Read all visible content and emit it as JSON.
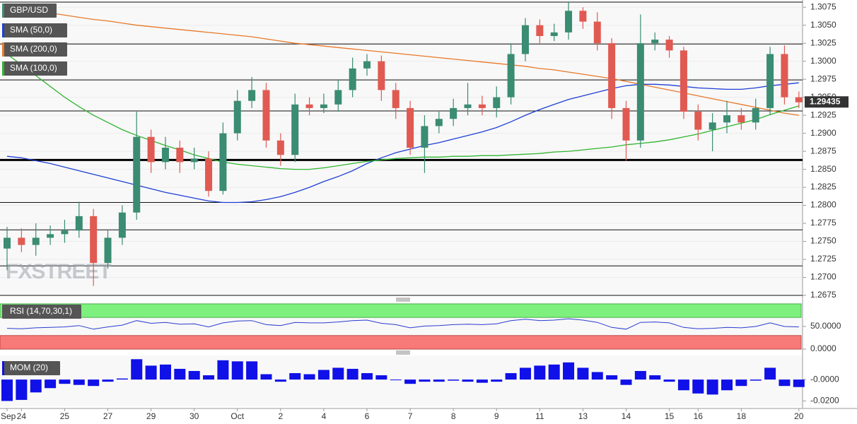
{
  "chart_data": {
    "type": "candlestick",
    "title": "GBP/USD",
    "categories": [
      "Sep",
      "24",
      null,
      null,
      "25",
      null,
      null,
      "27",
      null,
      null,
      "29",
      null,
      null,
      "30",
      null,
      null,
      "Oct",
      null,
      null,
      "2",
      null,
      null,
      "4",
      null,
      null,
      "6",
      null,
      null,
      "7",
      null,
      null,
      "8",
      null,
      null,
      "9",
      null,
      null,
      "11",
      null,
      null,
      "13",
      null,
      null,
      "14",
      null,
      null,
      "15",
      null,
      "16",
      null,
      null,
      "18",
      null,
      null,
      null,
      "20"
    ],
    "open": [
      1.274,
      1.2755,
      1.2745,
      1.2755,
      1.276,
      1.2765,
      1.2785,
      1.272,
      1.2755,
      1.279,
      1.2895,
      1.286,
      1.288,
      1.286,
      1.2865,
      1.282,
      1.29,
      1.2945,
      1.296,
      1.289,
      1.287,
      1.294,
      1.2935,
      1.294,
      1.296,
      1.299,
      1.3,
      1.296,
      1.2935,
      1.288,
      1.291,
      1.292,
      1.2935,
      1.294,
      1.2935,
      1.295,
      1.301,
      1.305,
      1.3035,
      1.304,
      1.307,
      1.3055,
      1.3025,
      1.2935,
      1.289,
      1.3025,
      1.303,
      1.3015,
      1.293,
      1.2905,
      1.2915,
      1.2925,
      1.2915,
      1.2935,
      1.301,
      1.295
    ],
    "high": [
      1.277,
      1.2768,
      1.2775,
      1.2772,
      1.278,
      1.2805,
      1.2795,
      1.2765,
      1.28,
      1.293,
      1.2905,
      1.2895,
      1.289,
      1.288,
      1.2875,
      1.2915,
      1.296,
      1.2978,
      1.297,
      1.29,
      1.2955,
      1.295,
      1.2955,
      1.2975,
      1.3005,
      1.301,
      1.3008,
      1.297,
      1.2945,
      1.2925,
      1.293,
      1.2948,
      1.297,
      1.2952,
      1.2965,
      1.3025,
      1.306,
      1.3058,
      1.3052,
      1.3082,
      1.3075,
      1.3068,
      1.3032,
      1.2945,
      1.3065,
      1.304,
      1.3035,
      1.302,
      1.294,
      1.2928,
      1.2945,
      1.2935,
      1.2948,
      1.302,
      1.3022,
      1.2958
    ],
    "low": [
      1.271,
      1.2735,
      1.273,
      1.2745,
      1.2748,
      1.2755,
      1.2688,
      1.2712,
      1.2745,
      1.278,
      1.2845,
      1.285,
      1.2845,
      1.285,
      1.2812,
      1.2815,
      1.289,
      1.2935,
      1.288,
      1.2855,
      1.286,
      1.2925,
      1.2928,
      1.293,
      1.295,
      1.298,
      1.2945,
      1.292,
      1.287,
      1.2845,
      1.29,
      1.291,
      1.2925,
      1.2925,
      1.2922,
      1.294,
      1.3,
      1.3025,
      1.3028,
      1.303,
      1.3045,
      1.3015,
      1.292,
      1.2862,
      1.288,
      1.3015,
      1.3005,
      1.292,
      1.289,
      1.2875,
      1.29,
      1.2905,
      1.2905,
      1.2925,
      1.294,
      1.2935
    ],
    "close": [
      1.2755,
      1.2745,
      1.2755,
      1.276,
      1.2765,
      1.2785,
      1.272,
      1.2755,
      1.279,
      1.2895,
      1.286,
      1.288,
      1.286,
      1.2865,
      1.282,
      1.29,
      1.2945,
      1.296,
      1.289,
      1.287,
      1.294,
      1.2935,
      1.294,
      1.296,
      1.299,
      1.3,
      1.296,
      1.2935,
      1.288,
      1.291,
      1.292,
      1.2935,
      1.294,
      1.2935,
      1.295,
      1.301,
      1.305,
      1.3035,
      1.304,
      1.307,
      1.3055,
      1.3025,
      1.2935,
      1.289,
      1.3025,
      1.303,
      1.3015,
      1.293,
      1.2905,
      1.2915,
      1.2925,
      1.2915,
      1.2935,
      1.301,
      1.295,
      1.2943
    ],
    "up_color": "#3a8c72",
    "down_color": "#e05a52",
    "ylim": [
      1.2675,
      1.3085
    ],
    "yticks": [
      1.3075,
      {
        "value": 1.305,
        "label": "1.3050"
      },
      1.3025,
      {
        "value": 1.3,
        "label": "1.3000"
      },
      1.2975,
      {
        "value": 1.295,
        "label": "1.2950"
      },
      1.2925,
      {
        "value": 1.29,
        "label": "1.2900"
      },
      1.2875,
      {
        "value": 1.285,
        "label": "1.2850"
      },
      1.2825,
      {
        "value": 1.28,
        "label": "1.2800"
      },
      1.2775,
      {
        "value": 1.275,
        "label": "1.2750"
      },
      1.2725,
      {
        "value": 1.27,
        "label": "1.2700"
      },
      1.2675
    ],
    "levels": [
      1.3082,
      1.3024,
      1.2974,
      1.2931,
      1.2804,
      1.2766,
      1.2716,
      1.2675
    ],
    "strong_level": 1.2863,
    "last_price": 1.29435,
    "watermark": "FXSTREET",
    "overlays": [
      {
        "name": "SMA (50,0)",
        "color": "#1f3fd6",
        "values": [
          1.2868,
          1.2866,
          1.2862,
          1.2858,
          1.2853,
          1.2848,
          1.2843,
          1.2838,
          1.2833,
          1.2828,
          1.2823,
          1.2818,
          1.2814,
          1.281,
          1.2806,
          1.2804,
          1.2804,
          1.2805,
          1.2808,
          1.2812,
          1.2818,
          1.2825,
          1.2833,
          1.284,
          1.2848,
          1.2858,
          1.2866,
          1.2873,
          1.2878,
          1.2883,
          1.2887,
          1.2892,
          1.2897,
          1.2902,
          1.2908,
          1.2916,
          1.2925,
          1.2933,
          1.294,
          1.2947,
          1.2952,
          1.2957,
          1.2962,
          1.2966,
          1.2968,
          1.2968,
          1.2967,
          1.2965,
          1.2963,
          1.2962,
          1.2961,
          1.2961,
          1.2963,
          1.2966,
          1.2968,
          1.297
        ]
      },
      {
        "name": "SMA (200,0)",
        "color": "#e8782a",
        "values": [
          1.3075,
          1.3072,
          1.307,
          1.3067,
          1.3064,
          1.3061,
          1.3058,
          1.3056,
          1.3053,
          1.305,
          1.3048,
          1.3046,
          1.3044,
          1.3042,
          1.304,
          1.3038,
          1.3036,
          1.3034,
          1.3031,
          1.3028,
          1.3025,
          1.3023,
          1.3021,
          1.3019,
          1.3017,
          1.3015,
          1.3013,
          1.3011,
          1.3009,
          1.3007,
          1.3005,
          1.3003,
          1.3001,
          1.2999,
          1.2997,
          1.2995,
          1.2993,
          1.299,
          1.2988,
          1.2985,
          1.2982,
          1.2979,
          1.2976,
          1.2972,
          1.2968,
          1.2964,
          1.296,
          1.2956,
          1.2952,
          1.2948,
          1.2944,
          1.294,
          1.2936,
          1.2932,
          1.2928,
          1.2925
        ]
      },
      {
        "name": "SMA (100,0)",
        "color": "#2fb52f",
        "values": [
          1.301,
          1.2995,
          1.298,
          1.2965,
          1.295,
          1.2937,
          1.2925,
          1.2915,
          1.2905,
          1.2897,
          1.289,
          1.2883,
          1.2877,
          1.287,
          1.2865,
          1.286,
          1.2857,
          1.2855,
          1.2853,
          1.2851,
          1.285,
          1.285,
          1.2852,
          1.2855,
          1.2858,
          1.2861,
          1.2863,
          1.2865,
          1.2866,
          1.2867,
          1.2867,
          1.2868,
          1.2868,
          1.2869,
          1.2869,
          1.287,
          1.2871,
          1.2872,
          1.2874,
          1.2875,
          1.2877,
          1.2879,
          1.2881,
          1.2884,
          1.2886,
          1.2888,
          1.2891,
          1.2895,
          1.2899,
          1.2904,
          1.2909,
          1.2914,
          1.2919,
          1.2926,
          1.2932,
          1.2938
        ]
      }
    ],
    "indicators": [
      {
        "type": "line",
        "name": "RSI (14,70,30,1)",
        "color": "#2b3bd0",
        "overbought": 70,
        "oversold": 30,
        "ylim": [
          0,
          100
        ],
        "yticks": [
          {
            "value": 50,
            "label": "50.0000"
          },
          {
            "value": 0,
            "label": "0.0000"
          }
        ],
        "values": [
          46,
          45,
          47,
          48,
          49,
          52,
          44,
          49,
          53,
          63,
          57,
          59,
          55,
          56,
          49,
          58,
          62,
          63,
          54,
          52,
          59,
          58,
          58,
          60,
          63,
          64,
          57,
          54,
          47,
          51,
          52,
          54,
          55,
          54,
          56,
          63,
          66,
          63,
          64,
          67,
          64,
          59,
          48,
          44,
          59,
          60,
          58,
          48,
          45,
          46,
          48,
          47,
          50,
          58,
          50,
          49
        ]
      },
      {
        "type": "bar",
        "name": "MOM (20)",
        "color": "#1010e8",
        "ylim": [
          -0.025,
          0.0225
        ],
        "yticks": [
          {
            "value": 0,
            "label": "-0.0000"
          },
          {
            "value": -0.02,
            "label": "-0.0200"
          }
        ],
        "values": [
          -0.02,
          -0.019,
          -0.012,
          -0.008,
          -0.004,
          -0.005,
          -0.006,
          -0.002,
          0.001,
          0.019,
          0.013,
          0.014,
          0.01,
          0.008,
          0.004,
          0.018,
          0.017,
          0.017,
          0.005,
          -0.002,
          0.006,
          0.005,
          0.009,
          0.011,
          0.01,
          0.006,
          0.004,
          0.0,
          -0.004,
          -0.002,
          -0.002,
          -0.001,
          -0.002,
          -0.003,
          -0.002,
          0.006,
          0.011,
          0.013,
          0.014,
          0.016,
          0.011,
          0.007,
          0.004,
          -0.005,
          0.008,
          0.004,
          -0.002,
          -0.01,
          -0.013,
          -0.014,
          -0.01,
          -0.006,
          -0.001,
          0.011,
          -0.006,
          -0.007
        ]
      }
    ]
  }
}
